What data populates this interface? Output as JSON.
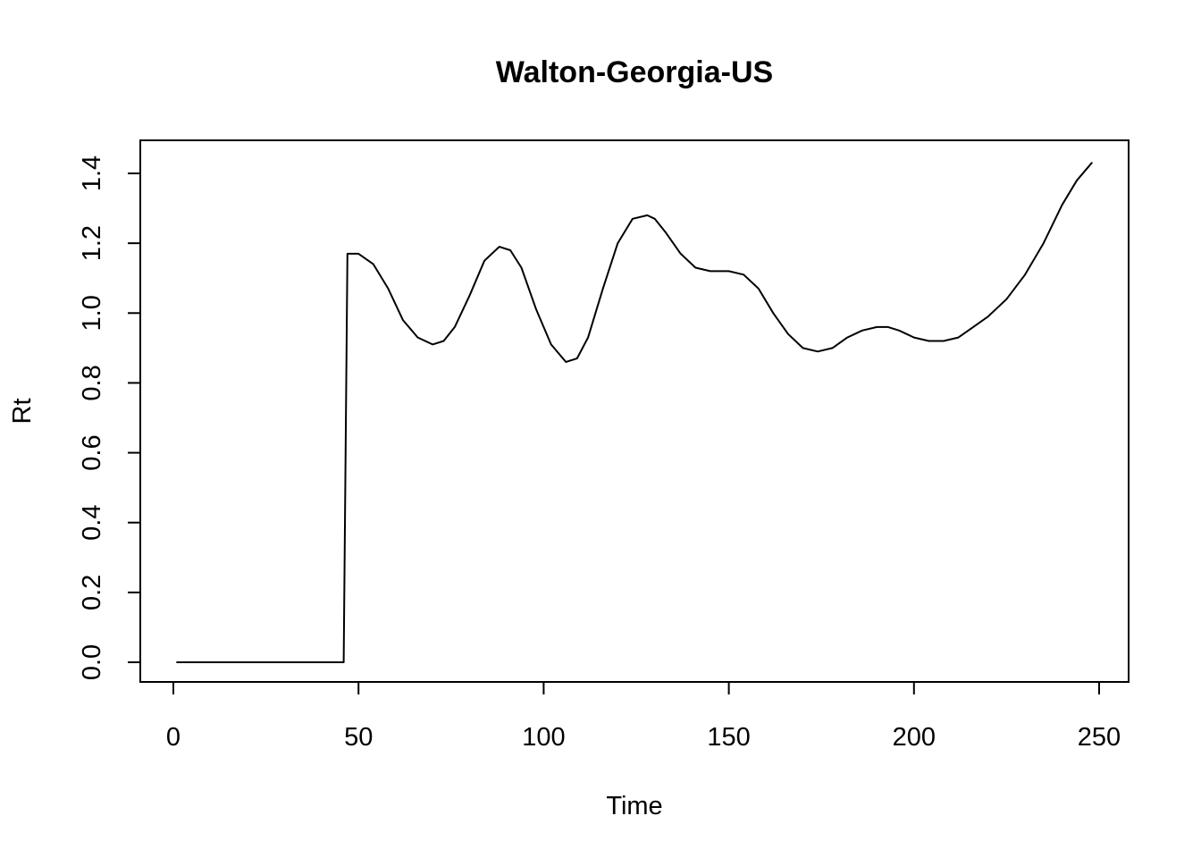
{
  "chart_data": {
    "type": "line",
    "title": "Walton-Georgia-US",
    "xlabel": "Time",
    "ylabel": "Rt",
    "xlim": [
      0,
      250
    ],
    "ylim": [
      0.0,
      1.4
    ],
    "x_ticks": [
      0,
      50,
      100,
      150,
      200,
      250
    ],
    "y_ticks": [
      0.0,
      0.2,
      0.4,
      0.6,
      0.8,
      1.0,
      1.2,
      1.4
    ],
    "x_tick_labels": [
      "0",
      "50",
      "100",
      "150",
      "200",
      "250"
    ],
    "y_tick_labels": [
      "0.0",
      "0.2",
      "0.4",
      "0.6",
      "0.8",
      "1.0",
      "1.2",
      "1.4"
    ],
    "grid": false,
    "legend": "none",
    "line_color": "#000000",
    "series": [
      {
        "x": [
          1,
          10,
          20,
          30,
          40,
          46,
          47,
          50,
          54,
          58,
          62,
          66,
          70,
          73,
          76,
          80,
          84,
          88,
          91,
          94,
          98,
          102,
          106,
          109,
          112,
          116,
          120,
          124,
          128,
          130,
          133,
          137,
          141,
          145,
          150,
          154,
          158,
          162,
          166,
          170,
          174,
          178,
          182,
          186,
          190,
          193,
          196,
          200,
          204,
          208,
          212,
          216,
          220,
          225,
          230,
          235,
          240,
          244,
          248
        ],
        "y": [
          0.0,
          0.0,
          0.0,
          0.0,
          0.0,
          0.0,
          1.17,
          1.17,
          1.14,
          1.07,
          0.98,
          0.93,
          0.91,
          0.92,
          0.96,
          1.05,
          1.15,
          1.19,
          1.18,
          1.13,
          1.01,
          0.91,
          0.86,
          0.87,
          0.93,
          1.07,
          1.2,
          1.27,
          1.28,
          1.27,
          1.23,
          1.17,
          1.13,
          1.12,
          1.12,
          1.11,
          1.07,
          1.0,
          0.94,
          0.9,
          0.89,
          0.9,
          0.93,
          0.95,
          0.96,
          0.96,
          0.95,
          0.93,
          0.92,
          0.92,
          0.93,
          0.96,
          0.99,
          1.04,
          1.11,
          1.2,
          1.31,
          1.38,
          1.43
        ]
      }
    ]
  }
}
